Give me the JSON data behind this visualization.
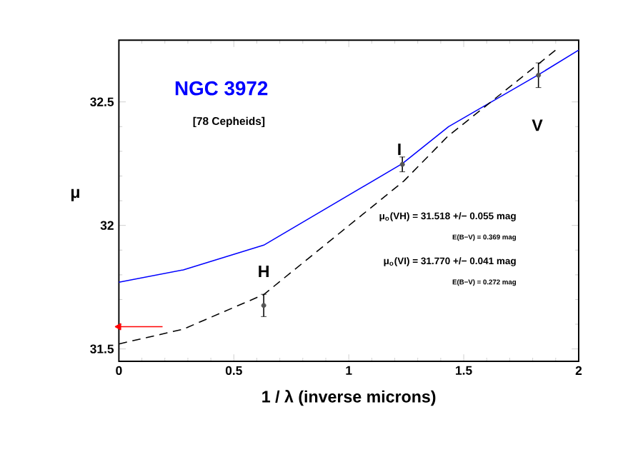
{
  "chart_data": {
    "type": "line",
    "title": "NGC 3972",
    "subtitle": "[78 Cepheids]",
    "xlabel": "1 / λ (inverse microns)",
    "ylabel": "μ",
    "xlim": [
      0,
      2
    ],
    "ylim": [
      31.45,
      32.75
    ],
    "xticks": [
      0,
      0.5,
      1,
      1.5,
      2
    ],
    "yticks": [
      31.5,
      32,
      32.5
    ],
    "grid": false,
    "series": [
      {
        "color": "#0000ff",
        "line_style": "solid",
        "marker": "none",
        "x": [
          0,
          0.28,
          0.63,
          1.233,
          1.434,
          1.825,
          2
        ],
        "values": [
          31.77,
          31.82,
          31.92,
          32.25,
          32.4,
          32.61,
          32.71
        ]
      },
      {
        "color": "#000000",
        "line_style": "dashed",
        "marker": "none",
        "x": [
          0,
          0.28,
          0.63,
          1.24,
          1.43,
          1.82,
          1.9
        ],
        "values": [
          31.52,
          31.58,
          31.72,
          32.18,
          32.36,
          32.65,
          32.71
        ]
      },
      {
        "type": "scatter",
        "color": "#555555",
        "marker": "circle",
        "x": [
          0.63,
          1.233,
          1.825
        ],
        "values": [
          31.676,
          32.247,
          32.608
        ],
        "errors": [
          0.045,
          0.03,
          0.05
        ]
      },
      {
        "color": "#ff0000",
        "line_style": "solid",
        "marker": "triangle",
        "x": [
          0,
          0.19
        ],
        "values": [
          31.59,
          31.59
        ]
      }
    ],
    "annotations": [
      "H",
      "I",
      "V",
      "μ$_{o}$(VH) = 31.518 +/− 0.055 mag",
      "E(B−V) = 0.369 mag",
      "μ$_{o}$(VI) = 31.770 +/− 0.041 mag",
      "E(B−V) = 0.272 mag"
    ]
  }
}
